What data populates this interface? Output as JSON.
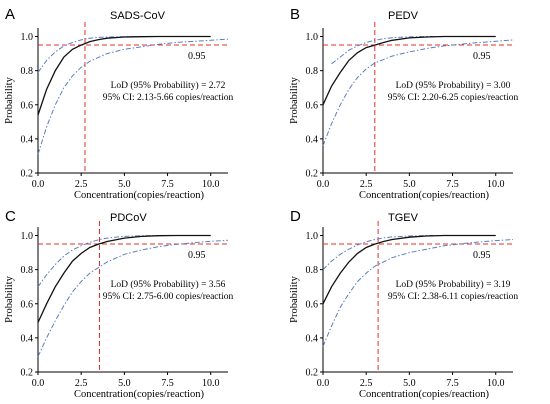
{
  "chart_data": [
    {
      "panel": "A",
      "type": "line",
      "title": "SADS-CoV",
      "xlabel": "Concentration(copies/reaction)",
      "ylabel": "Probability",
      "xlim": [
        0,
        11
      ],
      "ylim": [
        0.2,
        1.05
      ],
      "xticks": [
        "0.0",
        "2.5",
        "5.0",
        "7.5",
        "10.0"
      ],
      "yticks": [
        "0.2",
        "0.4",
        "0.6",
        "0.8",
        "1.0"
      ],
      "reference_y": 0.95,
      "reference_label": "0.95",
      "lod": 2.72,
      "annotation_line1": "LoD (95% Probability) = 2.72",
      "annotation_line2": "95% CI: 2.13-5.66 copies/reaction",
      "fit": {
        "x": [
          0,
          0.5,
          1,
          1.5,
          2,
          2.5,
          3,
          3.5,
          4,
          5,
          6,
          7,
          8,
          10
        ],
        "y": [
          0.54,
          0.69,
          0.8,
          0.88,
          0.925,
          0.95,
          0.97,
          0.982,
          0.99,
          0.997,
          0.999,
          1.0,
          1.0,
          1.0
        ]
      },
      "ci_upper": {
        "x": [
          0,
          0.5,
          1,
          1.5,
          2,
          2.5,
          3,
          3.5,
          4,
          5,
          6,
          8,
          10
        ],
        "y": [
          0.79,
          0.86,
          0.91,
          0.945,
          0.965,
          0.98,
          0.99,
          0.995,
          0.997,
          0.999,
          1.0,
          1.0,
          1.0
        ]
      },
      "ci_lower": {
        "x": [
          0,
          0.5,
          1,
          1.5,
          2,
          2.5,
          3,
          4,
          5,
          6,
          7,
          8,
          9,
          10,
          11
        ],
        "y": [
          0.31,
          0.47,
          0.6,
          0.7,
          0.77,
          0.82,
          0.855,
          0.9,
          0.925,
          0.94,
          0.955,
          0.965,
          0.972,
          0.978,
          0.985
        ]
      }
    },
    {
      "panel": "B",
      "type": "line",
      "title": "PEDV",
      "xlabel": "Concentration(copies/reaction)",
      "ylabel": "Probability",
      "xlim": [
        0,
        11
      ],
      "ylim": [
        0.2,
        1.05
      ],
      "xticks": [
        "0.0",
        "2.5",
        "5.0",
        "7.5",
        "10.0"
      ],
      "yticks": [
        "0.2",
        "0.4",
        "0.6",
        "0.8",
        "1.0"
      ],
      "reference_y": 0.95,
      "reference_label": "0.95",
      "lod": 3.0,
      "annotation_line1": "LoD (95% Probability) = 3.00",
      "annotation_line2": "95% CI: 2.20-6.25 copies/reaction",
      "fit": {
        "x": [
          0,
          0.5,
          1,
          1.5,
          2,
          2.5,
          3,
          3.5,
          4,
          5,
          6,
          7,
          8,
          10
        ],
        "y": [
          0.6,
          0.71,
          0.79,
          0.86,
          0.905,
          0.935,
          0.95,
          0.965,
          0.978,
          0.992,
          0.997,
          1.0,
          1.0,
          1.0
        ]
      },
      "ci_upper": {
        "x": [
          0.5,
          1,
          1.5,
          2,
          2.5,
          3,
          3.5,
          4,
          5,
          6,
          8,
          10
        ],
        "y": [
          0.84,
          0.88,
          0.92,
          0.945,
          0.965,
          0.978,
          0.987,
          0.993,
          0.998,
          1.0,
          1.0,
          1.0
        ]
      },
      "ci_lower": {
        "x": [
          0,
          0.5,
          1,
          1.5,
          2,
          2.5,
          3,
          4,
          5,
          6,
          7,
          8,
          9,
          10,
          11
        ],
        "y": [
          0.36,
          0.49,
          0.6,
          0.69,
          0.76,
          0.81,
          0.845,
          0.885,
          0.91,
          0.93,
          0.945,
          0.955,
          0.965,
          0.972,
          0.98
        ]
      }
    },
    {
      "panel": "C",
      "type": "line",
      "title": "PDCoV",
      "xlabel": "Concentration(copies/reaction)",
      "ylabel": "Probability",
      "xlim": [
        0,
        11
      ],
      "ylim": [
        0.2,
        1.05
      ],
      "xticks": [
        "0.0",
        "2.5",
        "5.0",
        "7.5",
        "10.0"
      ],
      "yticks": [
        "0.2",
        "0.4",
        "0.6",
        "0.8",
        "1.0"
      ],
      "reference_y": 0.95,
      "reference_label": "0.95",
      "lod": 3.56,
      "annotation_line1": "LoD (95% Probability) = 3.56",
      "annotation_line2": "95% CI: 2.75-6.00 copies/reaction",
      "fit": {
        "x": [
          0,
          0.5,
          1,
          1.5,
          2,
          2.5,
          3,
          3.5,
          4,
          5,
          6,
          7,
          8,
          10
        ],
        "y": [
          0.49,
          0.6,
          0.7,
          0.78,
          0.85,
          0.895,
          0.93,
          0.95,
          0.965,
          0.985,
          0.995,
          0.999,
          1.0,
          1.0
        ]
      },
      "ci_upper": {
        "x": [
          0,
          0.5,
          1,
          1.5,
          2,
          2.5,
          3,
          3.5,
          4,
          5,
          6,
          8,
          10
        ],
        "y": [
          0.7,
          0.77,
          0.83,
          0.88,
          0.915,
          0.94,
          0.96,
          0.975,
          0.985,
          0.995,
          0.999,
          1.0,
          1.0
        ]
      },
      "ci_lower": {
        "x": [
          0,
          0.5,
          1,
          1.5,
          2,
          2.5,
          3,
          4,
          5,
          6,
          7,
          8,
          9,
          10,
          11
        ],
        "y": [
          0.29,
          0.4,
          0.5,
          0.59,
          0.67,
          0.73,
          0.78,
          0.845,
          0.89,
          0.915,
          0.935,
          0.948,
          0.958,
          0.966,
          0.972
        ]
      }
    },
    {
      "panel": "D",
      "type": "line",
      "title": "TGEV",
      "xlabel": "Concentration(copies/reaction)",
      "ylabel": "Probability",
      "xlim": [
        0,
        11
      ],
      "ylim": [
        0.2,
        1.05
      ],
      "xticks": [
        "0.0",
        "2.5",
        "5.0",
        "7.5",
        "10.0"
      ],
      "yticks": [
        "0.2",
        "0.4",
        "0.6",
        "0.8",
        "1.0"
      ],
      "reference_y": 0.95,
      "reference_label": "0.95",
      "lod": 3.19,
      "annotation_line1": "LoD (95% Probability) = 3.19",
      "annotation_line2": "95% CI: 2.38-6.11 copies/reaction",
      "fit": {
        "x": [
          0,
          0.5,
          1,
          1.5,
          2,
          2.5,
          3,
          3.5,
          4,
          5,
          6,
          7,
          8,
          10
        ],
        "y": [
          0.6,
          0.7,
          0.78,
          0.845,
          0.895,
          0.93,
          0.95,
          0.965,
          0.977,
          0.99,
          0.997,
          1.0,
          1.0,
          1.0
        ]
      },
      "ci_upper": {
        "x": [
          0,
          0.5,
          1,
          1.5,
          2,
          2.5,
          3,
          3.5,
          4,
          5,
          6,
          8,
          10
        ],
        "y": [
          0.8,
          0.85,
          0.89,
          0.92,
          0.945,
          0.963,
          0.977,
          0.986,
          0.992,
          0.997,
          1.0,
          1.0,
          1.0
        ]
      },
      "ci_lower": {
        "x": [
          0,
          0.5,
          1,
          1.5,
          2,
          2.5,
          3,
          4,
          5,
          6,
          7,
          8,
          9,
          10,
          11
        ],
        "y": [
          0.35,
          0.47,
          0.58,
          0.66,
          0.73,
          0.78,
          0.82,
          0.87,
          0.9,
          0.92,
          0.94,
          0.952,
          0.962,
          0.97,
          0.977
        ]
      }
    }
  ]
}
